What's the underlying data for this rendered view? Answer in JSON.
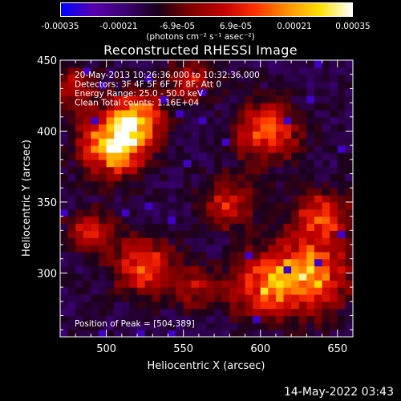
{
  "colorbar": {
    "ticks": [
      "-0.00035",
      "-0.00021",
      "-6.9e-05",
      "6.9e-05",
      "0.00021",
      "0.00035"
    ],
    "tick_values": [
      -0.00035,
      -0.00021,
      -6.9e-05,
      6.9e-05,
      0.00021,
      0.00035
    ],
    "units_label": "(photons cm⁻² s⁻¹ asec⁻²)",
    "colormap": [
      "#0000ff",
      "#5a00b0",
      "#3a0070",
      "#1a0018",
      "#800000",
      "#c00000",
      "#ff3000",
      "#ff9000",
      "#ffe000",
      "#ffffff"
    ]
  },
  "chart_data": {
    "type": "heatmap",
    "title": "Reconstructed RHESSI Image",
    "xlabel": "Heliocentric X (arcsec)",
    "ylabel": "Heliocentric Y (arcsec)",
    "xlim": [
      470,
      660
    ],
    "ylim": [
      255,
      450
    ],
    "xticks": [
      500,
      550,
      600,
      650
    ],
    "yticks": [
      300,
      350,
      400,
      450
    ],
    "annotations": [
      "20-May-2013 10:26:36.000 to 10:32:36.000",
      "Detectors: 3F 4F 5F 6F 7F 8F, Att 0",
      "Energy Range: 25.0 - 50.0 keV",
      "Clean     Total counts: 1.16E+04"
    ],
    "peak_label": "Position of Peak = [504,389]",
    "peak_position": [
      504,
      389
    ],
    "bright_sources": [
      {
        "x": 505,
        "y": 390,
        "intensity": 1.0,
        "sigma": 14
      },
      {
        "x": 520,
        "y": 410,
        "intensity": 0.7,
        "sigma": 12
      },
      {
        "x": 525,
        "y": 305,
        "intensity": 0.55,
        "sigma": 14
      },
      {
        "x": 605,
        "y": 400,
        "intensity": 0.6,
        "sigma": 14
      },
      {
        "x": 580,
        "y": 350,
        "intensity": 0.45,
        "sigma": 12
      },
      {
        "x": 630,
        "y": 300,
        "intensity": 0.8,
        "sigma": 18
      },
      {
        "x": 640,
        "y": 340,
        "intensity": 0.55,
        "sigma": 12
      },
      {
        "x": 600,
        "y": 290,
        "intensity": 0.55,
        "sigma": 14
      },
      {
        "x": 490,
        "y": 330,
        "intensity": 0.45,
        "sigma": 10
      },
      {
        "x": 555,
        "y": 435,
        "intensity": 0.45,
        "sigma": 10
      },
      {
        "x": 480,
        "y": 430,
        "intensity": 0.4,
        "sigma": 10
      },
      {
        "x": 560,
        "y": 290,
        "intensity": 0.35,
        "sigma": 10
      }
    ]
  },
  "footer": {
    "date": "14-May-2022 03:43"
  }
}
